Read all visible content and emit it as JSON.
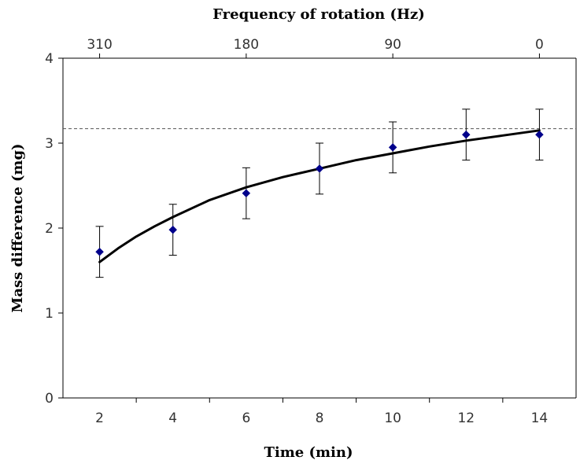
{
  "chart_data": {
    "type": "scatter",
    "xlabel": "Time (min)",
    "ylabel": "Mass difference (mg)",
    "top_axis_label": "Frequency of rotation (Hz)",
    "x_ticks": [
      2,
      4,
      6,
      8,
      10,
      12,
      14
    ],
    "x_tick_labels": [
      "2",
      "4",
      "6",
      "8",
      "10",
      "12",
      "14"
    ],
    "y_ticks": [
      0,
      1,
      2,
      3,
      4
    ],
    "y_tick_labels": [
      "0",
      "1",
      "2",
      "3",
      "4"
    ],
    "top_ticks": [
      {
        "x": 2,
        "label": "310"
      },
      {
        "x": 6,
        "label": "180"
      },
      {
        "x": 10,
        "label": "90"
      },
      {
        "x": 14,
        "label": "0"
      }
    ],
    "xlim": [
      1,
      15
    ],
    "ylim": [
      0,
      4
    ],
    "grid": false,
    "legend": "none",
    "series": [
      {
        "x": [
          2,
          4,
          6,
          8,
          10,
          12,
          14
        ],
        "values": [
          1.72,
          1.98,
          2.41,
          2.7,
          2.95,
          3.1,
          3.1
        ],
        "error": [
          0.3,
          0.3,
          0.3,
          0.3,
          0.3,
          0.3,
          0.3
        ],
        "color": "#00008b"
      }
    ],
    "fit_curve": {
      "x": [
        2,
        2.5,
        3,
        3.5,
        4,
        5,
        6,
        7,
        8,
        9,
        10,
        11,
        12,
        13,
        14
      ],
      "y": [
        1.6,
        1.76,
        1.9,
        2.02,
        2.13,
        2.33,
        2.48,
        2.6,
        2.7,
        2.8,
        2.88,
        2.96,
        3.03,
        3.09,
        3.15
      ],
      "color": "#000000"
    },
    "reference_line": {
      "y": 3.17,
      "style": "dashed",
      "color": "#555555"
    }
  }
}
